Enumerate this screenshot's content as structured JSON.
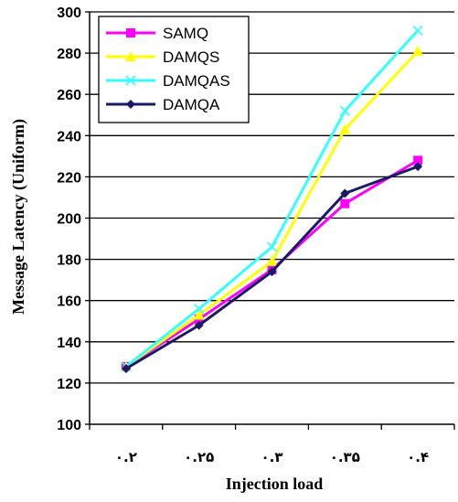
{
  "chart_data": {
    "type": "line",
    "categories": [
      "۰.۲",
      "۰.۲۵",
      "۰.۳",
      "۰.۳۵",
      "۰.۴"
    ],
    "xlabel": "Injection load",
    "ylabel": "Message Latency (Uniform)",
    "ylim": [
      100,
      300
    ],
    "yticks": [
      100,
      120,
      140,
      160,
      180,
      200,
      220,
      240,
      260,
      280,
      300
    ],
    "grid": true,
    "legend_position": "top-left",
    "series": [
      {
        "name": "SAMQ",
        "color": "#ff00ff",
        "marker": "square",
        "values": [
          128,
          151,
          175,
          207,
          228
        ]
      },
      {
        "name": "DAMQS",
        "color": "#ffff00",
        "marker": "triangle",
        "values": [
          128,
          153,
          179,
          243,
          281
        ]
      },
      {
        "name": "DAMQAS",
        "color": "#33ffff",
        "marker": "x",
        "values": [
          128,
          156,
          186,
          252,
          291
        ]
      },
      {
        "name": "DAMQA",
        "color": "#1a1a66",
        "marker": "diamond",
        "values": [
          127,
          148,
          174,
          212,
          225
        ]
      }
    ]
  }
}
